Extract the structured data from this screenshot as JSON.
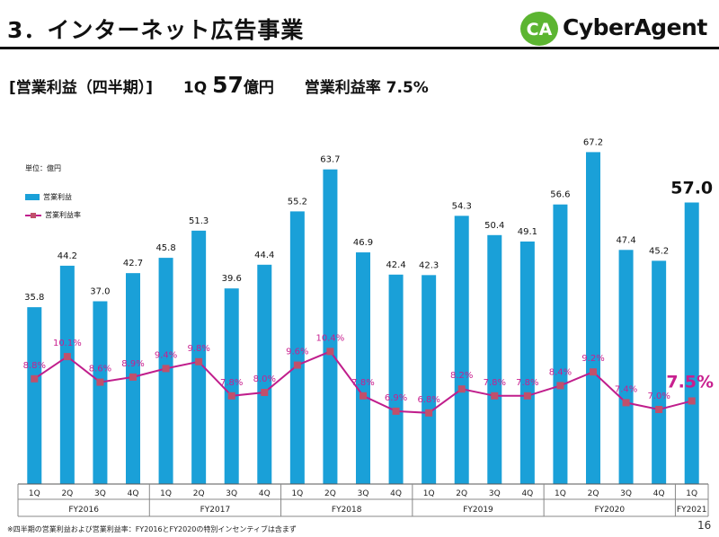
{
  "header": {
    "title": "3．インターネット広告事業",
    "logo_text": "CyberAgent",
    "logo_mark_text": "CA"
  },
  "subtitle": {
    "bracket": "[営業利益（四半期）]",
    "quarter": "1Q",
    "value": "57",
    "unit": "億円",
    "margin_label": "営業利益率",
    "margin_value": "7.5%"
  },
  "chart_data": {
    "type": "bar",
    "unit_label": "単位：億円",
    "legend": [
      {
        "name": "営業利益",
        "type": "bar",
        "color": "#1aa0d8"
      },
      {
        "name": "営業利益率",
        "type": "line",
        "color": "#c01e8c"
      }
    ],
    "categories": [
      "1Q",
      "2Q",
      "3Q",
      "4Q",
      "1Q",
      "2Q",
      "3Q",
      "4Q",
      "1Q",
      "2Q",
      "3Q",
      "4Q",
      "1Q",
      "2Q",
      "3Q",
      "4Q",
      "1Q",
      "2Q",
      "3Q",
      "4Q",
      "1Q"
    ],
    "groups": [
      {
        "label": "FY2016",
        "count": 4
      },
      {
        "label": "FY2017",
        "count": 4
      },
      {
        "label": "FY2018",
        "count": 4
      },
      {
        "label": "FY2019",
        "count": 4
      },
      {
        "label": "FY2020",
        "count": 4
      },
      {
        "label": "FY2021",
        "count": 1
      }
    ],
    "series": [
      {
        "name": "営業利益",
        "values": [
          35.8,
          44.2,
          37.0,
          42.7,
          45.8,
          51.3,
          39.6,
          44.4,
          55.2,
          63.7,
          46.9,
          42.4,
          42.3,
          54.3,
          50.4,
          49.1,
          56.6,
          67.2,
          47.4,
          45.2,
          57.0
        ],
        "labels": [
          "35.8",
          "44.2",
          "37.0",
          "42.7",
          "45.8",
          "51.3",
          "39.6",
          "44.4",
          "55.2",
          "63.7",
          "46.9",
          "42.4",
          "42.3",
          "54.3",
          "50.4",
          "49.1",
          "56.6",
          "67.2",
          "47.4",
          "45.2",
          "57.0"
        ]
      },
      {
        "name": "営業利益率",
        "values": [
          8.8,
          10.1,
          8.6,
          8.9,
          9.4,
          9.8,
          7.8,
          8.0,
          9.6,
          10.4,
          7.8,
          6.9,
          6.8,
          8.2,
          7.8,
          7.8,
          8.4,
          9.2,
          7.4,
          7.0,
          7.5
        ],
        "labels": [
          "8.8%",
          "10.1%",
          "8.6%",
          "8.9%",
          "9.4%",
          "9.8%",
          "7.8%",
          "8.0%",
          "9.6%",
          "10.4%",
          "7.8%",
          "6.9%",
          "6.8%",
          "8.2%",
          "7.8%",
          "7.8%",
          "8.4%",
          "9.2%",
          "7.4%",
          "7.0%",
          "7.5%"
        ]
      }
    ],
    "highlight_last": true,
    "colors": {
      "bar": "#1aa0d8",
      "line": "#c01e8c",
      "marker": "#c0506b",
      "margin_label": "#c8208f"
    }
  },
  "footnote": "※四半期の営業利益および営業利益率：FY2016とFY2020の特別インセンティブは含まず",
  "page_number": "16"
}
